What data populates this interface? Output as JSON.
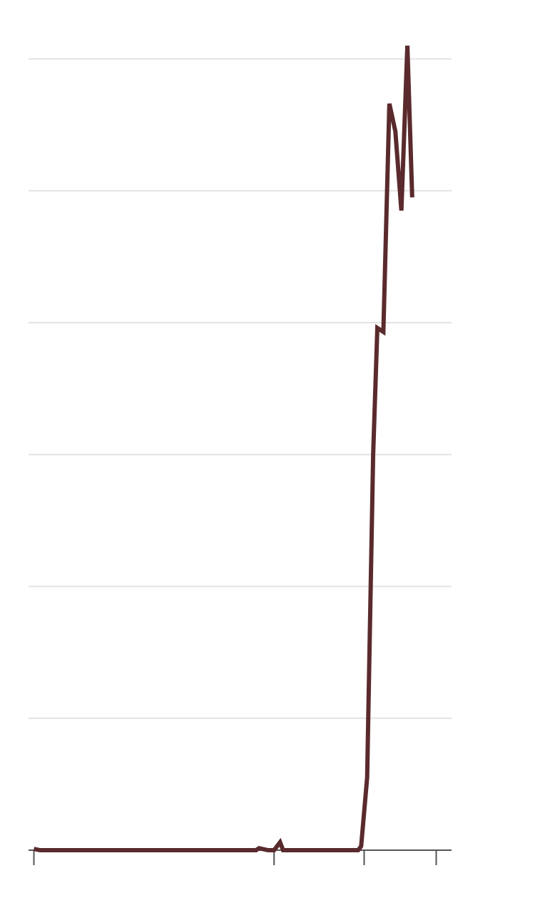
{
  "chart_data": {
    "type": "line",
    "title": "",
    "xlabel": "",
    "ylabel": "",
    "xlim": [
      0,
      70
    ],
    "ylim": [
      0,
      60
    ],
    "grid": true,
    "y_gridlines": [
      10,
      20,
      30,
      40,
      50,
      60
    ],
    "x_ticks": [
      0,
      40,
      55,
      67
    ],
    "series": [
      {
        "color": "#5a2a2c",
        "points": [
          [
            0,
            0.1
          ],
          [
            1,
            0
          ],
          [
            37,
            0
          ],
          [
            37.5,
            0.15
          ],
          [
            38,
            0.1
          ],
          [
            39,
            0
          ],
          [
            40,
            0
          ],
          [
            41,
            0.6
          ],
          [
            41.5,
            0
          ],
          [
            54,
            0
          ],
          [
            54.5,
            0.3
          ],
          [
            55.5,
            5.5
          ],
          [
            56.5,
            30
          ],
          [
            57.2,
            39.6
          ],
          [
            58.2,
            39.3
          ],
          [
            59.2,
            56.6
          ],
          [
            60.2,
            54.5
          ],
          [
            61.2,
            48.5
          ],
          [
            62.2,
            61
          ],
          [
            63.0,
            49.5
          ]
        ]
      }
    ]
  },
  "colors": {
    "line": "#5a2a2c",
    "grid": "#e3e3e3",
    "axis": "#555555"
  }
}
